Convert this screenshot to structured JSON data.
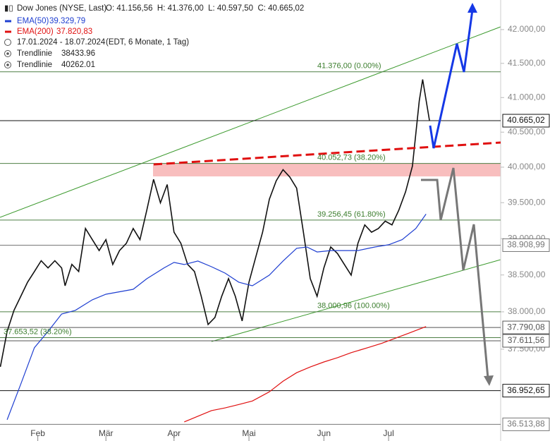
{
  "chart_data": {
    "type": "line",
    "log_scale": true,
    "legend": {
      "instrument": "Dow Jones (NYSE, Last)",
      "ohlc": "O: 41.156,56  H: 41.376,00  L: 40.597,50  C: 40.665,02",
      "ema50": "EMA(50)",
      "ema50_value": "39.329,79",
      "ema200": "EMA(200)",
      "ema200_value": "37.820,83",
      "range": "17.01.2024 - 18.07.2024",
      "range_note": "(EDT, 6 Monate, 1 Tag)",
      "trend1": "Trendlinie",
      "trend1_value": "38433.96",
      "trend2": "Trendlinie",
      "trend2_value": "40262.01"
    },
    "xlim": [
      -0.1,
      146.9
    ],
    "xticks": [
      {
        "value": 11,
        "label": "Feb"
      },
      {
        "value": 31,
        "label": "Mär"
      },
      {
        "value": 51,
        "label": "Apr"
      },
      {
        "value": 73,
        "label": "Mai"
      },
      {
        "value": 95,
        "label": "Jun"
      },
      {
        "value": 114,
        "label": "Jul"
      }
    ],
    "ylim": [
      36490,
      42443
    ],
    "yticks": [
      {
        "value": 42000,
        "label": "42.000,00"
      },
      {
        "value": 41500,
        "label": "41.500,00"
      },
      {
        "value": 41000,
        "label": "41.000,00"
      },
      {
        "value": 40500,
        "label": "40.500,00"
      },
      {
        "value": 40000,
        "label": "40.000,00"
      },
      {
        "value": 39500,
        "label": "39.500,00"
      },
      {
        "value": 39000,
        "label": "39.000,00"
      },
      {
        "value": 38500,
        "label": "38.500,00"
      },
      {
        "value": 38000,
        "label": "38.000,00"
      },
      {
        "value": 37500,
        "label": "37.500,00"
      }
    ],
    "series": [
      {
        "name": "Dow Jones (NYSE, Last)",
        "color": "#111111",
        "x": [
          0,
          2,
          4,
          6,
          8,
          10,
          12,
          14,
          16,
          18,
          19,
          21,
          23,
          25,
          27,
          29,
          31,
          33,
          35,
          37,
          39,
          41,
          43,
          45,
          47,
          49,
          51,
          53,
          55,
          57,
          59,
          61,
          63,
          65,
          67,
          69,
          71,
          73,
          75,
          77,
          79,
          81,
          83,
          85,
          87,
          89,
          91,
          93,
          95,
          97,
          99,
          101,
          103,
          105,
          107,
          109,
          111,
          113,
          115,
          117,
          119,
          121,
          123,
          124,
          126
        ],
        "values": [
          37266,
          37737,
          38019,
          38210,
          38402,
          38547,
          38695,
          38596,
          38695,
          38596,
          38353,
          38645,
          38547,
          39140,
          38986,
          38835,
          38986,
          38645,
          38835,
          38935,
          39140,
          38986,
          39395,
          39828,
          39497,
          39755,
          39088,
          38935,
          38645,
          38547,
          38210,
          37830,
          37924,
          38210,
          38451,
          38210,
          37877,
          38402,
          38744,
          39088,
          39549,
          39807,
          39965,
          39860,
          39703,
          39088,
          38451,
          38210,
          38596,
          38884,
          38794,
          38645,
          38498,
          38935,
          39190,
          39088,
          39140,
          39242,
          39190,
          39395,
          39653,
          40016,
          40952,
          41264,
          40665.02
        ]
      },
      {
        "name": "EMA(50)",
        "color": "#1f3fd1",
        "x": [
          2,
          6,
          10,
          14,
          18,
          22,
          27,
          31,
          39,
          43,
          48,
          51,
          54,
          58,
          62,
          66,
          70,
          74,
          79,
          83,
          87,
          90,
          93,
          97,
          101,
          105,
          110,
          114,
          118,
          122,
          125
        ],
        "values": [
          36573,
          37039,
          37520,
          37737,
          37971,
          38019,
          38162,
          38238,
          38305,
          38449,
          38594,
          38672,
          38643,
          38691,
          38613,
          38525,
          38402,
          38353,
          38498,
          38691,
          38866,
          38884,
          38815,
          38835,
          38835,
          38835,
          38884,
          38914,
          38986,
          39140,
          39340
        ]
      },
      {
        "name": "EMA(200)",
        "color": "#e01010",
        "x": [
          54,
          58,
          62,
          66,
          70,
          74,
          79,
          83,
          87,
          91,
          95,
          99,
          103,
          108,
          112,
          116,
          120,
          125
        ],
        "values": [
          36546,
          36619,
          36692,
          36727,
          36771,
          36817,
          36937,
          37076,
          37189,
          37264,
          37330,
          37387,
          37454,
          37521,
          37578,
          37646,
          37714,
          37802
        ]
      }
    ],
    "levels": [
      {
        "value": 41376,
        "label": "41.376,00 (0.00%)"
      },
      {
        "value": 40052.73,
        "label": "40.052,73 (38.20%)"
      },
      {
        "value": 39256.45,
        "label": "39.256,45 (61.80%)"
      },
      {
        "value": 38000.96,
        "label": "38.000,96 (100.00%)"
      },
      {
        "value": 37653.52,
        "label": "37.653,52 (38.20%)"
      }
    ],
    "price_marks": [
      {
        "value": 40665.02,
        "label": "40.665,02",
        "color": "#111111"
      },
      {
        "value": 38908.99,
        "label": "38.908,99",
        "color": "#777777"
      },
      {
        "value": 37790.08,
        "label": "37.790,08",
        "color": "#555555"
      },
      {
        "value": 37611.56,
        "label": "37.611,56",
        "color": "#555555"
      },
      {
        "value": 36952.65,
        "label": "36.952,65",
        "color": "#111111"
      },
      {
        "value": 36513.88,
        "label": "36.513,88",
        "color": "#777777"
      }
    ]
  }
}
